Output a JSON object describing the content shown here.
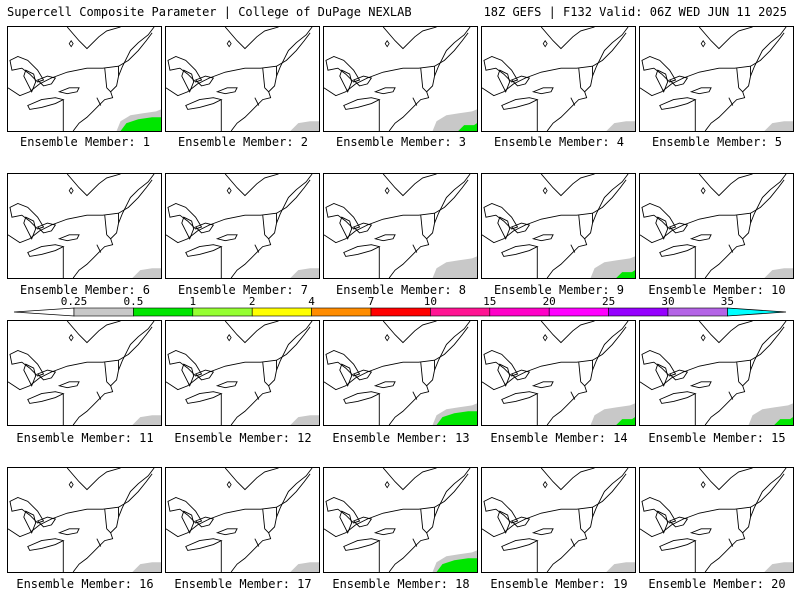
{
  "header": {
    "left": "Supercell Composite Parameter | College of DuPage NEXLAB",
    "right": "18Z GEFS | F132 Valid: 06Z WED JUN 11 2025"
  },
  "colorbar": {
    "ticks": [
      "0.25",
      "0.5",
      "1",
      "2",
      "4",
      "7",
      "10",
      "15",
      "20",
      "25",
      "30",
      "35"
    ],
    "colors": [
      "#c8c8c8",
      "#00e600",
      "#96ff32",
      "#ffff00",
      "#ff8c00",
      "#ff0000",
      "#ff1493",
      "#ff00c8",
      "#ff00ff",
      "#9600ff",
      "#b464e6",
      "#00ffff"
    ]
  },
  "members": [
    {
      "label": "Ensemble Member: 1"
    },
    {
      "label": "Ensemble Member: 2"
    },
    {
      "label": "Ensemble Member: 3"
    },
    {
      "label": "Ensemble Member: 4"
    },
    {
      "label": "Ensemble Member: 5"
    },
    {
      "label": "Ensemble Member: 6"
    },
    {
      "label": "Ensemble Member: 7"
    },
    {
      "label": "Ensemble Member: 8"
    },
    {
      "label": "Ensemble Member: 9"
    },
    {
      "label": "Ensemble Member: 10"
    },
    {
      "label": "Ensemble Member: 11"
    },
    {
      "label": "Ensemble Member: 12"
    },
    {
      "label": "Ensemble Member: 13"
    },
    {
      "label": "Ensemble Member: 14"
    },
    {
      "label": "Ensemble Member: 15"
    },
    {
      "label": "Ensemble Member: 16"
    },
    {
      "label": "Ensemble Member: 17"
    },
    {
      "label": "Ensemble Member: 18"
    },
    {
      "label": "Ensemble Member: 19"
    },
    {
      "label": "Ensemble Member: 20"
    }
  ]
}
